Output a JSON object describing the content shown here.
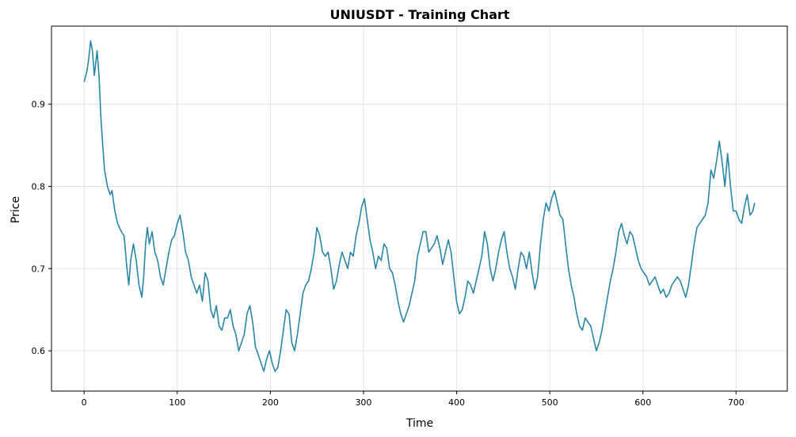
{
  "chart_data": {
    "type": "line",
    "title": "UNIUSDT - Training Chart",
    "xlabel": "Time",
    "ylabel": "Price",
    "xlim": [
      -35,
      755
    ],
    "ylim": [
      0.551,
      0.995
    ],
    "xticks": [
      "0",
      "100",
      "200",
      "300",
      "400",
      "500",
      "600",
      "700"
    ],
    "yticks": [
      "0.6",
      "0.7",
      "0.8",
      "0.9"
    ],
    "grid": true,
    "line_color": "#2a86a8",
    "series": [
      {
        "points": [
          [
            0,
            0.927
          ],
          [
            3,
            0.94
          ],
          [
            5,
            0.955
          ],
          [
            7,
            0.977
          ],
          [
            9,
            0.965
          ],
          [
            11,
            0.935
          ],
          [
            14,
            0.965
          ],
          [
            16,
            0.935
          ],
          [
            18,
            0.885
          ],
          [
            20,
            0.85
          ],
          [
            22,
            0.82
          ],
          [
            25,
            0.8
          ],
          [
            28,
            0.79
          ],
          [
            30,
            0.795
          ],
          [
            33,
            0.77
          ],
          [
            36,
            0.755
          ],
          [
            40,
            0.745
          ],
          [
            43,
            0.74
          ],
          [
            46,
            0.7
          ],
          [
            48,
            0.68
          ],
          [
            50,
            0.71
          ],
          [
            53,
            0.73
          ],
          [
            56,
            0.71
          ],
          [
            59,
            0.68
          ],
          [
            62,
            0.665
          ],
          [
            64,
            0.69
          ],
          [
            66,
            0.73
          ],
          [
            68,
            0.75
          ],
          [
            70,
            0.73
          ],
          [
            73,
            0.745
          ],
          [
            76,
            0.72
          ],
          [
            79,
            0.71
          ],
          [
            82,
            0.69
          ],
          [
            85,
            0.68
          ],
          [
            88,
            0.7
          ],
          [
            91,
            0.72
          ],
          [
            94,
            0.735
          ],
          [
            97,
            0.74
          ],
          [
            100,
            0.755
          ],
          [
            103,
            0.765
          ],
          [
            106,
            0.745
          ],
          [
            109,
            0.72
          ],
          [
            112,
            0.71
          ],
          [
            115,
            0.69
          ],
          [
            118,
            0.68
          ],
          [
            121,
            0.67
          ],
          [
            124,
            0.68
          ],
          [
            127,
            0.66
          ],
          [
            130,
            0.695
          ],
          [
            133,
            0.685
          ],
          [
            136,
            0.65
          ],
          [
            139,
            0.64
          ],
          [
            142,
            0.655
          ],
          [
            145,
            0.63
          ],
          [
            148,
            0.625
          ],
          [
            151,
            0.64
          ],
          [
            154,
            0.64
          ],
          [
            157,
            0.65
          ],
          [
            160,
            0.63
          ],
          [
            163,
            0.62
          ],
          [
            166,
            0.6
          ],
          [
            169,
            0.61
          ],
          [
            172,
            0.62
          ],
          [
            175,
            0.645
          ],
          [
            178,
            0.655
          ],
          [
            181,
            0.635
          ],
          [
            184,
            0.605
          ],
          [
            187,
            0.595
          ],
          [
            190,
            0.585
          ],
          [
            193,
            0.575
          ],
          [
            196,
            0.59
          ],
          [
            199,
            0.6
          ],
          [
            202,
            0.585
          ],
          [
            205,
            0.575
          ],
          [
            208,
            0.58
          ],
          [
            211,
            0.6
          ],
          [
            214,
            0.625
          ],
          [
            217,
            0.65
          ],
          [
            220,
            0.645
          ],
          [
            223,
            0.61
          ],
          [
            226,
            0.6
          ],
          [
            229,
            0.62
          ],
          [
            232,
            0.645
          ],
          [
            235,
            0.67
          ],
          [
            238,
            0.68
          ],
          [
            241,
            0.685
          ],
          [
            244,
            0.7
          ],
          [
            247,
            0.72
          ],
          [
            250,
            0.75
          ],
          [
            253,
            0.74
          ],
          [
            256,
            0.72
          ],
          [
            259,
            0.715
          ],
          [
            262,
            0.72
          ],
          [
            265,
            0.7
          ],
          [
            268,
            0.675
          ],
          [
            271,
            0.685
          ],
          [
            274,
            0.705
          ],
          [
            277,
            0.72
          ],
          [
            280,
            0.71
          ],
          [
            283,
            0.7
          ],
          [
            286,
            0.72
          ],
          [
            289,
            0.715
          ],
          [
            292,
            0.74
          ],
          [
            295,
            0.755
          ],
          [
            298,
            0.775
          ],
          [
            301,
            0.785
          ],
          [
            304,
            0.76
          ],
          [
            307,
            0.735
          ],
          [
            310,
            0.72
          ],
          [
            313,
            0.7
          ],
          [
            316,
            0.715
          ],
          [
            319,
            0.71
          ],
          [
            322,
            0.73
          ],
          [
            325,
            0.725
          ],
          [
            328,
            0.7
          ],
          [
            331,
            0.695
          ],
          [
            334,
            0.68
          ],
          [
            337,
            0.66
          ],
          [
            340,
            0.645
          ],
          [
            343,
            0.635
          ],
          [
            346,
            0.645
          ],
          [
            349,
            0.655
          ],
          [
            352,
            0.67
          ],
          [
            355,
            0.685
          ],
          [
            358,
            0.715
          ],
          [
            361,
            0.73
          ],
          [
            364,
            0.745
          ],
          [
            367,
            0.745
          ],
          [
            370,
            0.72
          ],
          [
            373,
            0.725
          ],
          [
            376,
            0.73
          ],
          [
            379,
            0.74
          ],
          [
            382,
            0.725
          ],
          [
            385,
            0.705
          ],
          [
            388,
            0.72
          ],
          [
            391,
            0.735
          ],
          [
            394,
            0.72
          ],
          [
            397,
            0.69
          ],
          [
            400,
            0.66
          ],
          [
            403,
            0.645
          ],
          [
            406,
            0.65
          ],
          [
            409,
            0.665
          ],
          [
            412,
            0.685
          ],
          [
            415,
            0.68
          ],
          [
            418,
            0.67
          ],
          [
            421,
            0.685
          ],
          [
            424,
            0.7
          ],
          [
            427,
            0.715
          ],
          [
            430,
            0.745
          ],
          [
            433,
            0.73
          ],
          [
            436,
            0.7
          ],
          [
            439,
            0.685
          ],
          [
            442,
            0.7
          ],
          [
            445,
            0.72
          ],
          [
            448,
            0.735
          ],
          [
            451,
            0.745
          ],
          [
            454,
            0.72
          ],
          [
            457,
            0.7
          ],
          [
            460,
            0.69
          ],
          [
            463,
            0.675
          ],
          [
            466,
            0.7
          ],
          [
            469,
            0.72
          ],
          [
            472,
            0.715
          ],
          [
            475,
            0.7
          ],
          [
            478,
            0.72
          ],
          [
            481,
            0.695
          ],
          [
            484,
            0.675
          ],
          [
            487,
            0.69
          ],
          [
            490,
            0.73
          ],
          [
            493,
            0.76
          ],
          [
            496,
            0.78
          ],
          [
            499,
            0.77
          ],
          [
            502,
            0.785
          ],
          [
            505,
            0.795
          ],
          [
            508,
            0.78
          ],
          [
            511,
            0.765
          ],
          [
            514,
            0.76
          ],
          [
            517,
            0.73
          ],
          [
            520,
            0.7
          ],
          [
            523,
            0.68
          ],
          [
            526,
            0.665
          ],
          [
            529,
            0.645
          ],
          [
            532,
            0.63
          ],
          [
            535,
            0.625
          ],
          [
            538,
            0.64
          ],
          [
            541,
            0.635
          ],
          [
            544,
            0.63
          ],
          [
            547,
            0.615
          ],
          [
            550,
            0.6
          ],
          [
            553,
            0.61
          ],
          [
            556,
            0.625
          ],
          [
            559,
            0.645
          ],
          [
            562,
            0.665
          ],
          [
            565,
            0.685
          ],
          [
            568,
            0.7
          ],
          [
            571,
            0.72
          ],
          [
            574,
            0.745
          ],
          [
            577,
            0.755
          ],
          [
            580,
            0.74
          ],
          [
            583,
            0.73
          ],
          [
            586,
            0.745
          ],
          [
            589,
            0.74
          ],
          [
            592,
            0.725
          ],
          [
            595,
            0.71
          ],
          [
            598,
            0.7
          ],
          [
            601,
            0.695
          ],
          [
            604,
            0.69
          ],
          [
            607,
            0.68
          ],
          [
            610,
            0.685
          ],
          [
            613,
            0.69
          ],
          [
            616,
            0.68
          ],
          [
            619,
            0.67
          ],
          [
            622,
            0.675
          ],
          [
            625,
            0.665
          ],
          [
            628,
            0.67
          ],
          [
            631,
            0.68
          ],
          [
            634,
            0.685
          ],
          [
            637,
            0.69
          ],
          [
            640,
            0.685
          ],
          [
            643,
            0.675
          ],
          [
            646,
            0.665
          ],
          [
            649,
            0.68
          ],
          [
            652,
            0.705
          ],
          [
            655,
            0.73
          ],
          [
            658,
            0.75
          ],
          [
            661,
            0.755
          ],
          [
            664,
            0.76
          ],
          [
            667,
            0.765
          ],
          [
            670,
            0.78
          ],
          [
            673,
            0.82
          ],
          [
            676,
            0.81
          ],
          [
            679,
            0.83
          ],
          [
            682,
            0.855
          ],
          [
            685,
            0.83
          ],
          [
            688,
            0.8
          ],
          [
            691,
            0.84
          ],
          [
            694,
            0.8
          ],
          [
            697,
            0.77
          ],
          [
            700,
            0.77
          ],
          [
            703,
            0.76
          ],
          [
            706,
            0.755
          ],
          [
            709,
            0.775
          ],
          [
            712,
            0.79
          ],
          [
            715,
            0.765
          ],
          [
            718,
            0.77
          ],
          [
            720,
            0.78
          ]
        ]
      }
    ]
  }
}
